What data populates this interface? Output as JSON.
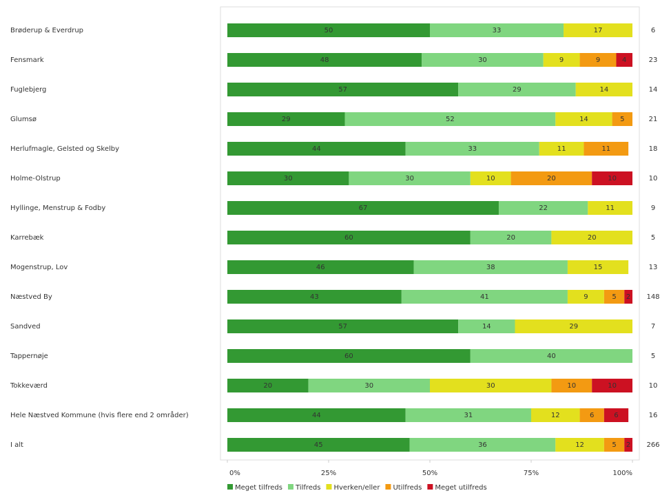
{
  "chart_data": {
    "type": "stacked-bar-horizontal",
    "categories": [
      "Brøderup & Everdrup",
      "Fensmark",
      "Fuglebjerg",
      "Glumsø",
      "Herlufmagle, Gelsted og Skelby",
      "Holme-Olstrup",
      "Hyllinge, Menstrup & Fodby",
      "Karrebæk",
      "Mogenstrup, Lov",
      "Næstved By",
      "Sandved",
      "Tappernøje",
      "Tokkeværd",
      "Hele Næstved Kommune (hvis flere end 2 områder)",
      "I alt"
    ],
    "series": [
      {
        "name": "Meget tilfreds",
        "color": "#339933",
        "values": [
          50,
          48,
          57,
          29,
          44,
          30,
          67,
          60,
          46,
          43,
          57,
          60,
          20,
          44,
          45
        ]
      },
      {
        "name": "Tilfreds",
        "color": "#80d680",
        "values": [
          33,
          30,
          29,
          52,
          33,
          30,
          22,
          20,
          38,
          41,
          14,
          40,
          30,
          31,
          36
        ]
      },
      {
        "name": "Hverken/eller",
        "color": "#e3e01e",
        "values": [
          17,
          9,
          14,
          14,
          11,
          10,
          11,
          20,
          15,
          9,
          29,
          null,
          30,
          12,
          12
        ]
      },
      {
        "name": "Utilfreds",
        "color": "#f39a12",
        "values": [
          null,
          9,
          null,
          5,
          11,
          20,
          null,
          null,
          null,
          5,
          null,
          null,
          10,
          6,
          5
        ]
      },
      {
        "name": "Meget utilfreds",
        "color": "#cc1122",
        "values": [
          null,
          4,
          null,
          null,
          null,
          10,
          null,
          null,
          null,
          2,
          null,
          null,
          10,
          6,
          2
        ]
      }
    ],
    "respondents": [
      6,
      23,
      14,
      21,
      18,
      10,
      9,
      5,
      13,
      148,
      7,
      5,
      10,
      16,
      266
    ],
    "xlim": [
      0,
      100
    ],
    "xticks": [
      {
        "value": 0,
        "label": "0%"
      },
      {
        "value": 25,
        "label": "25%"
      },
      {
        "value": 50,
        "label": "50%"
      },
      {
        "value": 75,
        "label": "75%"
      },
      {
        "value": 100,
        "label": "100%"
      }
    ],
    "legend": "bottom"
  }
}
